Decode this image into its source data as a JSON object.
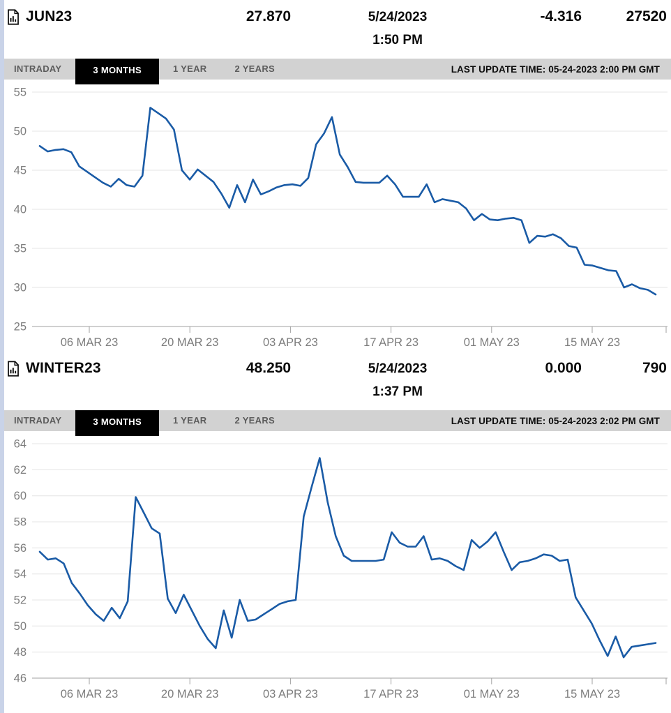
{
  "instruments": [
    {
      "name": "JUN23",
      "price": "27.870",
      "date": "5/24/2023",
      "time": "1:50 PM",
      "change": "-4.316",
      "volume": "27520",
      "last_update": "LAST UPDATE TIME: 05-24-2023 2:00 PM GMT"
    },
    {
      "name": "WINTER23",
      "price": "48.250",
      "date": "5/24/2023",
      "time": "1:37 PM",
      "change": "0.000",
      "volume": "790",
      "last_update": "LAST UPDATE TIME: 05-24-2023 2:02 PM GMT"
    }
  ],
  "tabs": [
    "INTRADAY",
    "3 MONTHS",
    "1 YEAR",
    "2 YEARS"
  ],
  "active_tab": "3 MONTHS",
  "colors": {
    "line": "#1a5ba6",
    "tab_bar_bg": "#d2d2d2",
    "tab_active_bg": "#000000",
    "tab_active_text": "#ffffff",
    "tab_text": "#5c5c5c",
    "axis_text": "#7d7d7d",
    "grid": "#e4e4e4",
    "axis_line": "#a2a2a2",
    "left_strip": "#c9d3e8"
  },
  "chart_data": [
    {
      "type": "line",
      "title": "JUN23 3 months price history",
      "x_ticks": [
        "06 MAR 23",
        "20 MAR 23",
        "03 APR 23",
        "17 APR 23",
        "01 MAY 23",
        "15 MAY 23"
      ],
      "ylim": [
        25,
        55
      ],
      "y_ticks": [
        25,
        30,
        35,
        40,
        45,
        50,
        55
      ],
      "grid": true,
      "legend": "none",
      "line_color": "#1a5ba6",
      "series": [
        {
          "name": "JUN23",
          "values": [
            48.1,
            47.4,
            47.6,
            47.7,
            47.3,
            45.5,
            44.8,
            44.1,
            43.4,
            42.9,
            43.9,
            43.1,
            42.9,
            44.3,
            53.0,
            52.3,
            51.6,
            50.2,
            45.0,
            43.8,
            45.1,
            44.3,
            43.5,
            42.0,
            40.2,
            43.1,
            40.9,
            43.8,
            41.9,
            42.3,
            42.8,
            43.1,
            43.2,
            43.0,
            44.0,
            48.3,
            49.7,
            51.8,
            47.0,
            45.4,
            43.5,
            43.4,
            43.4,
            43.4,
            44.3,
            43.2,
            41.6,
            41.6,
            41.6,
            43.2,
            40.9,
            41.3,
            41.1,
            40.9,
            40.1,
            38.6,
            39.4,
            38.7,
            38.6,
            38.8,
            38.9,
            38.6,
            35.7,
            36.6,
            36.5,
            36.8,
            36.3,
            35.3,
            35.1,
            32.9,
            32.8,
            32.5,
            32.2,
            32.1,
            30.0,
            30.4,
            29.9,
            29.7,
            29.1
          ]
        }
      ]
    },
    {
      "type": "line",
      "title": "WINTER23 3 months price history",
      "x_ticks": [
        "06 MAR 23",
        "20 MAR 23",
        "03 APR 23",
        "17 APR 23",
        "01 MAY 23",
        "15 MAY 23"
      ],
      "ylim": [
        46,
        64
      ],
      "y_ticks": [
        46,
        48,
        50,
        52,
        54,
        56,
        58,
        60,
        62,
        64
      ],
      "grid": true,
      "legend": "none",
      "line_color": "#1a5ba6",
      "series": [
        {
          "name": "WINTER23",
          "values": [
            55.7,
            55.1,
            55.2,
            54.8,
            53.3,
            52.5,
            51.6,
            50.9,
            50.4,
            51.4,
            50.6,
            51.9,
            59.9,
            58.7,
            57.5,
            57.1,
            52.1,
            51.0,
            52.4,
            51.2,
            50.0,
            49.0,
            48.3,
            51.2,
            49.1,
            52.0,
            50.4,
            50.5,
            50.9,
            51.3,
            51.7,
            51.9,
            52.0,
            58.4,
            60.7,
            62.9,
            59.5,
            56.9,
            55.4,
            55.0,
            55.0,
            55.0,
            55.0,
            55.1,
            57.2,
            56.4,
            56.1,
            56.1,
            56.9,
            55.1,
            55.2,
            55.0,
            54.6,
            54.3,
            56.6,
            56.0,
            56.5,
            57.2,
            55.7,
            54.3,
            54.9,
            55.0,
            55.2,
            55.5,
            55.4,
            55.0,
            55.1,
            52.2,
            51.2,
            50.2,
            48.9,
            47.7,
            49.2,
            47.6,
            48.4,
            48.5,
            48.6,
            48.7
          ]
        }
      ]
    }
  ]
}
